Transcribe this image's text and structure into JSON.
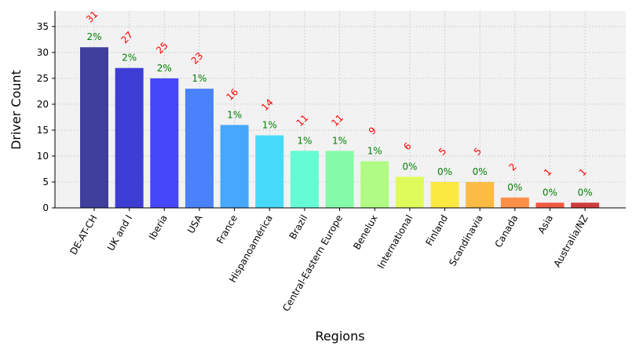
{
  "chart_data": {
    "type": "bar",
    "xlabel": "Regions",
    "ylabel": "Driver Count",
    "ylim": [
      0,
      38
    ],
    "yticks": [
      0,
      5,
      10,
      15,
      20,
      25,
      30,
      35
    ],
    "grid": true,
    "categories": [
      "DE-AT-CH",
      "UK and I",
      "Iberia",
      "USA",
      "France",
      "Hispanoamérica",
      "Brazil",
      "Central-Eastern Europe",
      "Benelux",
      "International",
      "Finland",
      "Scandinavia",
      "Canada",
      "Asia",
      "Australia/NZ"
    ],
    "values": [
      31,
      27,
      25,
      23,
      16,
      14,
      11,
      11,
      9,
      6,
      5,
      5,
      2,
      1,
      1
    ],
    "value_labels": [
      "31",
      "27",
      "25",
      "23",
      "16",
      "14",
      "11",
      "11",
      "9",
      "6",
      "5",
      "5",
      "2",
      "1",
      "1"
    ],
    "percent_labels": [
      "2%",
      "2%",
      "2%",
      "1%",
      "1%",
      "1%",
      "1%",
      "1%",
      "1%",
      "0%",
      "0%",
      "0%",
      "0%",
      "0%",
      "0%"
    ],
    "colors": [
      "#3f3f9e",
      "#3d3dd6",
      "#4646fb",
      "#4a82fb",
      "#47a7fb",
      "#47daf8",
      "#65fbd4",
      "#85fba9",
      "#b0fb83",
      "#dffb5b",
      "#fbe941",
      "#fbbb45",
      "#fb9048",
      "#f05a3f",
      "#d03c3c"
    ],
    "value_label_color": "#ff0000",
    "percent_label_color": "#008000",
    "plot_background": "#f2f2f2"
  }
}
